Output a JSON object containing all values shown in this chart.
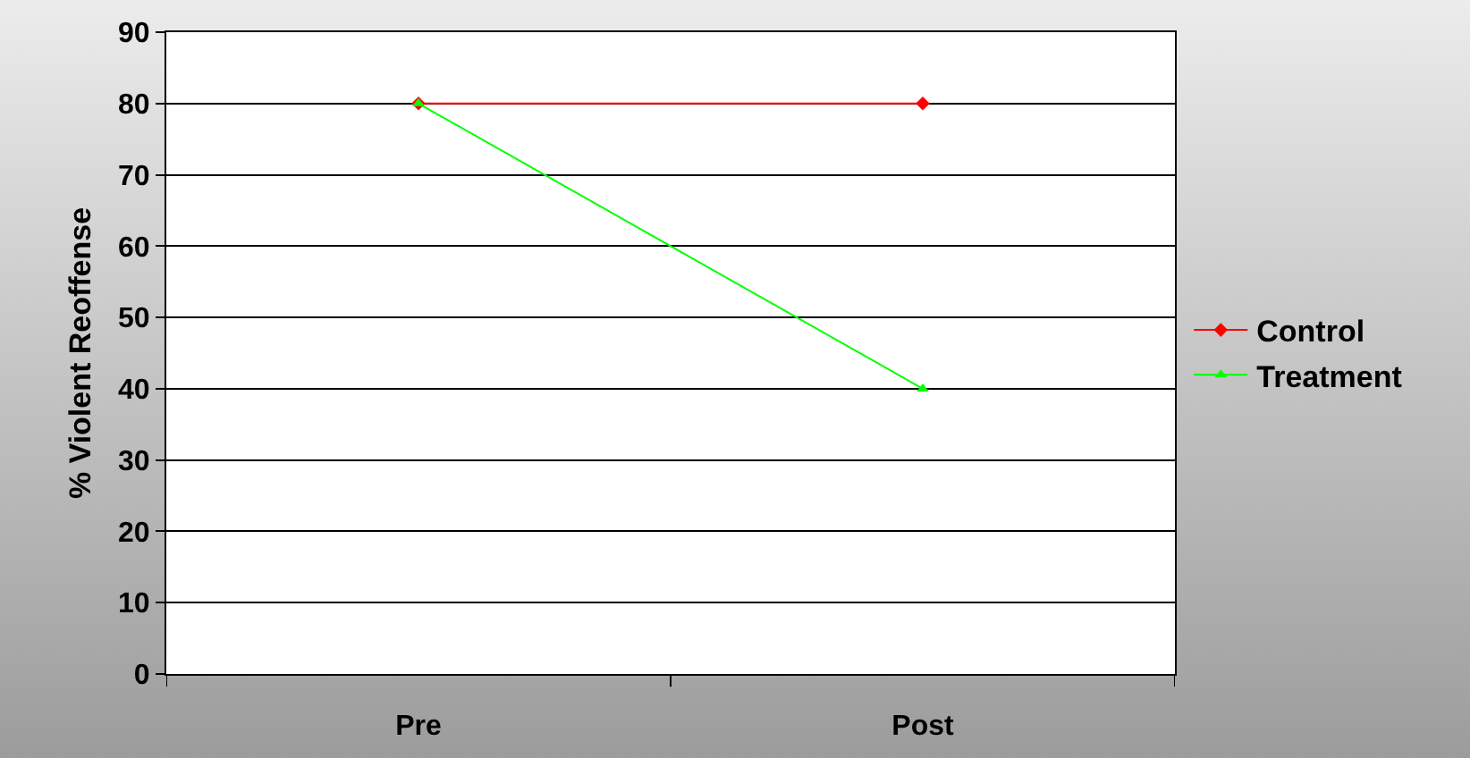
{
  "chart_data": {
    "type": "line",
    "ylabel": "% Violent Reoffense",
    "categories": [
      "Pre",
      "Post"
    ],
    "series": [
      {
        "name": "Control",
        "color": "#ff0000",
        "marker": "diamond",
        "values": [
          80,
          80
        ]
      },
      {
        "name": "Treatment",
        "color": "#00ff00",
        "marker": "triangle",
        "values": [
          80,
          40
        ]
      }
    ],
    "ylim": [
      0,
      90
    ],
    "yticks": [
      0,
      10,
      20,
      30,
      40,
      50,
      60,
      70,
      80,
      90
    ],
    "grid": "y",
    "legend": "right"
  }
}
